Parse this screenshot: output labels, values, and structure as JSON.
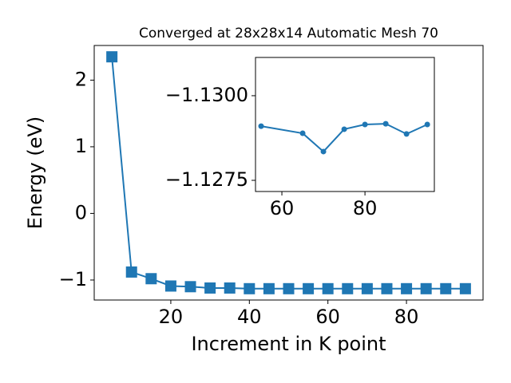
{
  "chart_data": [
    {
      "type": "line",
      "title": "Converged at 28x28x14 Automatic Mesh 70",
      "xlabel": "Increment in K point",
      "ylabel": "Energy (eV)",
      "marker": "square",
      "series": [
        {
          "color": "#1f77b4",
          "x": [
            5,
            10,
            15,
            20,
            25,
            30,
            35,
            40,
            45,
            50,
            55,
            60,
            65,
            70,
            75,
            80,
            85,
            90,
            95
          ],
          "values": [
            2.35,
            -0.88,
            -0.98,
            -1.09,
            -1.1,
            -1.12,
            -1.12,
            -1.13,
            -1.13,
            -1.13,
            -1.13,
            -1.13,
            -1.13,
            -1.13,
            -1.13,
            -1.13,
            -1.13,
            -1.13,
            -1.13
          ]
        }
      ],
      "xlim": [
        0.5,
        99.5
      ],
      "xticks": [
        20,
        40,
        60,
        80
      ],
      "ylim": [
        -1.3,
        2.52
      ],
      "yticks": [
        {
          "value": -1,
          "label": "−1"
        },
        0,
        1,
        2
      ]
    },
    {
      "type": "line",
      "marker": "circle",
      "series": [
        {
          "color": "#1f77b4",
          "x": [
            55,
            65,
            70,
            75,
            80,
            85,
            90,
            95
          ],
          "values": [
            -1.1291,
            -1.12889,
            -1.12835,
            -1.12901,
            -1.12915,
            -1.12917,
            -1.12887,
            -1.12915
          ]
        }
      ],
      "xlim": [
        53.65,
        96.7
      ],
      "xticks": [
        60,
        80
      ],
      "ylim": [
        -1.12717,
        -1.13113
      ],
      "yticks": [
        {
          "value": -1.13,
          "label": "−1.1300"
        },
        {
          "value": -1.1275,
          "label": "−1.1275"
        }
      ]
    }
  ]
}
